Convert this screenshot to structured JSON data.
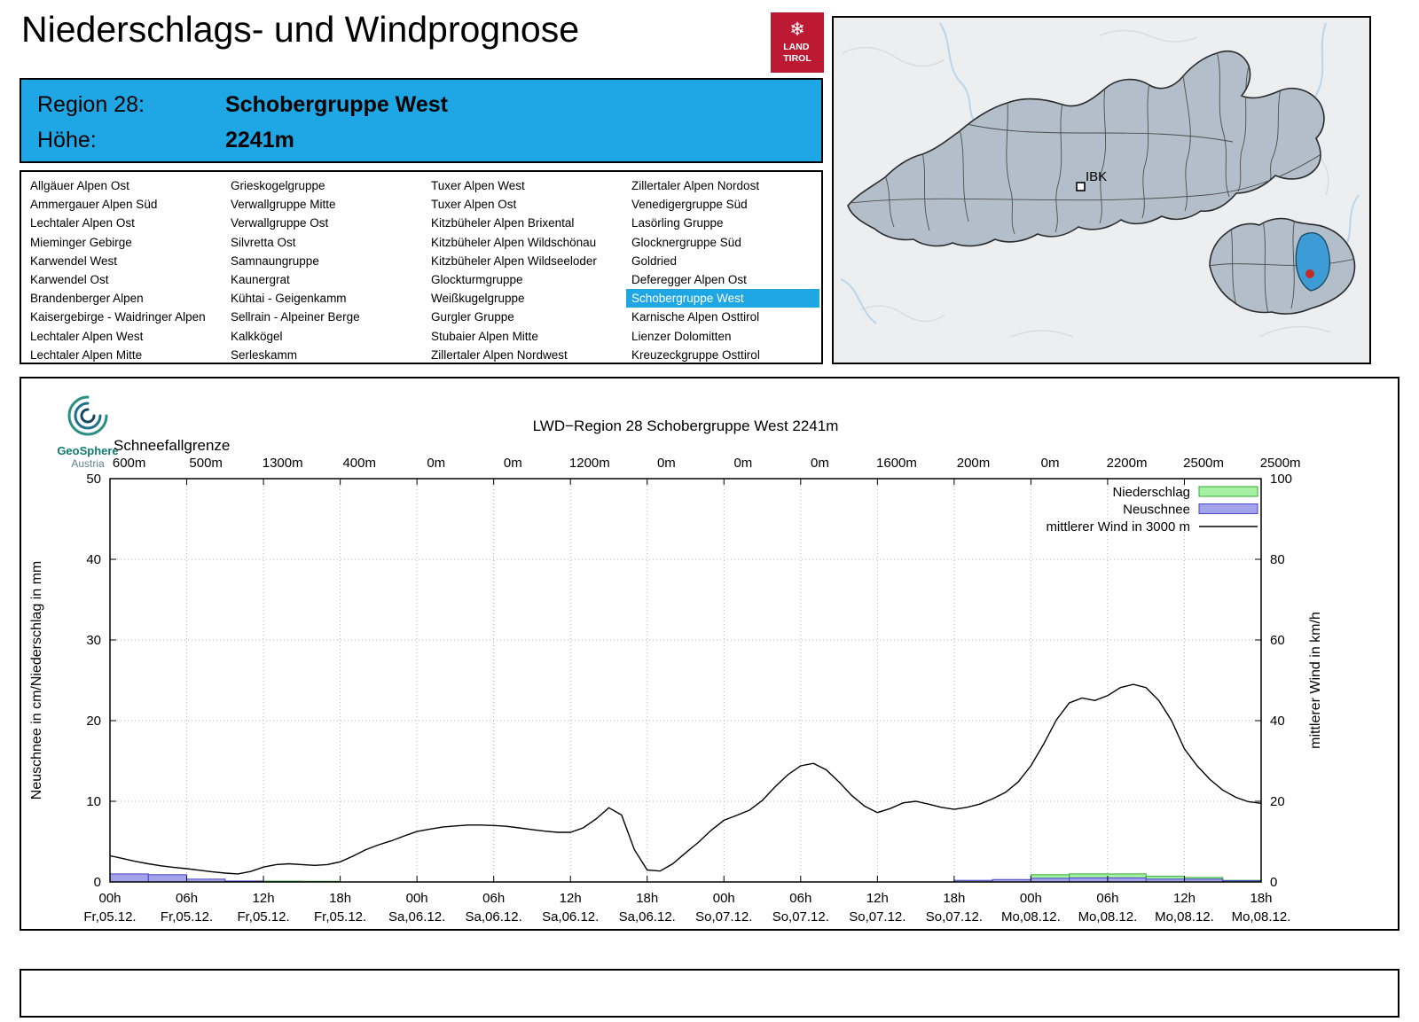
{
  "page": {
    "title": "Niederschlags- und Windprognose"
  },
  "logo": {
    "line1": "LAND",
    "line2": "TIROL",
    "color": "#bc1a33"
  },
  "region_header": {
    "region_label": "Region 28:",
    "region_name": "Schobergruppe West",
    "altitude_label": "Höhe:",
    "altitude_value": "2241m",
    "background": "#1fa6e4"
  },
  "region_list": {
    "selected_region": "Schobergruppe West",
    "columns": [
      [
        "Allgäuer Alpen Ost",
        "Ammergauer Alpen Süd",
        "Lechtaler Alpen Ost",
        "Mieminger Gebirge",
        "Karwendel West",
        "Karwendel Ost",
        "Brandenberger Alpen",
        "Kaisergebirge - Waidringer Alpen",
        "Lechtaler Alpen West",
        "Lechtaler Alpen Mitte"
      ],
      [
        "Grieskogelgruppe",
        "Verwallgruppe Mitte",
        "Verwallgruppe Ost",
        "Silvretta Ost",
        "Samnaungruppe",
        "Kaunergrat",
        "Kühtai - Geigenkamm",
        "Sellrain - Alpeiner Berge",
        "Kalkkögel",
        "Serleskamm"
      ],
      [
        "Tuxer Alpen West",
        "Tuxer Alpen Ost",
        "Kitzbüheler Alpen Brixental",
        "Kitzbüheler Alpen Wildschönau",
        "Kitzbüheler Alpen Wildseeloder",
        "Glockturmgruppe",
        "Weißkugelgruppe",
        "Gurgler Gruppe",
        "Stubaier Alpen Mitte",
        "Zillertaler Alpen Nordwest"
      ],
      [
        "Zillertaler Alpen Nordost",
        "Venedigergruppe Süd",
        "Lasörling Gruppe",
        "Glocknergruppe Süd",
        "Goldried",
        "Deferegger Alpen Ost",
        "Schobergruppe West",
        "Karnische Alpen Osttirol",
        "Lienzer Dolomitten",
        "Kreuzeckgruppe Osttirol"
      ]
    ]
  },
  "map": {
    "city_label": "IBK",
    "region_fill": "#b2bec9",
    "highlight_fill": "#3d9bd5",
    "dot_color": "#c22b2b"
  },
  "geosphere": {
    "name": "GeoSphere",
    "sub": "Austria"
  },
  "chart_data": {
    "type": "line+bar",
    "title": "LWD−Region 28 Schobergruppe West 2241m",
    "snowline_label": "Schneefallgrenze",
    "snowline_values": [
      "600m",
      "500m",
      "1300m",
      "400m",
      "0m",
      "0m",
      "1200m",
      "0m",
      "0m",
      "0m",
      "1600m",
      "200m",
      "0m",
      "2200m",
      "2500m",
      "2500m"
    ],
    "ylabel_left": "Neuschnee in cm/Niederschlag in mm",
    "ylabel_right": "mittlerer Wind in km/h",
    "ylim_left": [
      0,
      50
    ],
    "ylim_right": [
      0,
      100
    ],
    "left_ticks": [
      0,
      10,
      20,
      30,
      40,
      50
    ],
    "right_ticks": [
      0,
      20,
      40,
      60,
      80,
      100
    ],
    "x_span_hours": 90,
    "x_ticks": [
      {
        "time": "00h",
        "date": "Fr,05.12."
      },
      {
        "time": "06h",
        "date": "Fr,05.12."
      },
      {
        "time": "12h",
        "date": "Fr,05.12."
      },
      {
        "time": "18h",
        "date": "Fr,05.12."
      },
      {
        "time": "00h",
        "date": "Sa,06.12."
      },
      {
        "time": "06h",
        "date": "Sa,06.12."
      },
      {
        "time": "12h",
        "date": "Sa,06.12."
      },
      {
        "time": "18h",
        "date": "Sa,06.12."
      },
      {
        "time": "00h",
        "date": "So,07.12."
      },
      {
        "time": "06h",
        "date": "So,07.12."
      },
      {
        "time": "12h",
        "date": "So,07.12."
      },
      {
        "time": "18h",
        "date": "So,07.12."
      },
      {
        "time": "00h",
        "date": "Mo,08.12."
      },
      {
        "time": "06h",
        "date": "Mo,08.12."
      },
      {
        "time": "12h",
        "date": "Mo,08.12."
      },
      {
        "time": "18h",
        "date": "Mo,08.12."
      }
    ],
    "legend": [
      {
        "label": "Niederschlag",
        "key": "box",
        "fill": "#a5f0a5",
        "stroke": "#2fae2f"
      },
      {
        "label": "Neuschnee",
        "key": "box",
        "fill": "#a3a3ec",
        "stroke": "#4848c8"
      },
      {
        "label": "mittlerer Wind in 3000 m",
        "key": "line",
        "stroke": "#000000"
      }
    ],
    "colors": {
      "niederschlag_fill": "#a5f0a5",
      "niederschlag_stroke": "#2fae2f",
      "neuschnee_fill": "#a3a3ec",
      "neuschnee_stroke": "#4848c8",
      "wind": "#000000"
    },
    "niederschlag_bars": [
      {
        "start": 12,
        "end": 15,
        "value": 0.1
      },
      {
        "start": 15,
        "end": 18,
        "value": 0.08
      },
      {
        "start": 72,
        "end": 75,
        "value": 0.9
      },
      {
        "start": 75,
        "end": 81,
        "value": 1.0
      },
      {
        "start": 81,
        "end": 84,
        "value": 0.7
      },
      {
        "start": 84,
        "end": 87,
        "value": 0.55
      },
      {
        "start": 87,
        "end": 90,
        "value": 0.2
      }
    ],
    "neuschnee_bars": [
      {
        "start": 0,
        "end": 3,
        "value": 1.0
      },
      {
        "start": 3,
        "end": 6,
        "value": 0.9
      },
      {
        "start": 6,
        "end": 9,
        "value": 0.35
      },
      {
        "start": 9,
        "end": 12,
        "value": 0.12
      },
      {
        "start": 66,
        "end": 69,
        "value": 0.2
      },
      {
        "start": 69,
        "end": 72,
        "value": 0.3
      },
      {
        "start": 72,
        "end": 75,
        "value": 0.45
      },
      {
        "start": 75,
        "end": 81,
        "value": 0.5
      },
      {
        "start": 81,
        "end": 87,
        "value": 0.35
      },
      {
        "start": 87,
        "end": 90,
        "value": 0.15
      }
    ],
    "wind_points": [
      [
        0,
        6.5
      ],
      [
        1,
        5.8
      ],
      [
        2,
        5.1
      ],
      [
        3,
        4.5
      ],
      [
        4,
        4.0
      ],
      [
        5,
        3.6
      ],
      [
        6,
        3.3
      ],
      [
        7,
        2.9
      ],
      [
        8,
        2.5
      ],
      [
        9,
        2.2
      ],
      [
        10,
        2.0
      ],
      [
        11,
        2.6
      ],
      [
        12,
        3.7
      ],
      [
        13,
        4.3
      ],
      [
        14,
        4.5
      ],
      [
        15,
        4.3
      ],
      [
        16,
        4.1
      ],
      [
        17,
        4.3
      ],
      [
        18,
        5.0
      ],
      [
        19,
        6.4
      ],
      [
        20,
        8.0
      ],
      [
        21,
        9.2
      ],
      [
        22,
        10.2
      ],
      [
        23,
        11.4
      ],
      [
        24,
        12.5
      ],
      [
        25,
        13.1
      ],
      [
        26,
        13.6
      ],
      [
        27,
        13.9
      ],
      [
        28,
        14.1
      ],
      [
        29,
        14.1
      ],
      [
        30,
        14.0
      ],
      [
        31,
        13.8
      ],
      [
        32,
        13.4
      ],
      [
        33,
        13.0
      ],
      [
        34,
        12.6
      ],
      [
        35,
        12.3
      ],
      [
        36,
        12.3
      ],
      [
        37,
        13.4
      ],
      [
        38,
        15.6
      ],
      [
        39,
        18.4
      ],
      [
        40,
        16.6
      ],
      [
        41,
        8.0
      ],
      [
        42,
        3.0
      ],
      [
        43,
        2.7
      ],
      [
        44,
        4.5
      ],
      [
        45,
        7.2
      ],
      [
        46,
        9.8
      ],
      [
        47,
        12.8
      ],
      [
        48,
        15.3
      ],
      [
        49,
        16.5
      ],
      [
        50,
        17.8
      ],
      [
        51,
        20.2
      ],
      [
        52,
        23.6
      ],
      [
        53,
        26.6
      ],
      [
        54,
        28.8
      ],
      [
        55,
        29.4
      ],
      [
        56,
        27.8
      ],
      [
        57,
        24.8
      ],
      [
        58,
        21.4
      ],
      [
        59,
        18.8
      ],
      [
        60,
        17.2
      ],
      [
        61,
        18.2
      ],
      [
        62,
        19.6
      ],
      [
        63,
        20.0
      ],
      [
        64,
        19.3
      ],
      [
        65,
        18.5
      ],
      [
        66,
        18.0
      ],
      [
        67,
        18.5
      ],
      [
        68,
        19.3
      ],
      [
        69,
        20.6
      ],
      [
        70,
        22.2
      ],
      [
        71,
        24.8
      ],
      [
        72,
        28.8
      ],
      [
        73,
        34.2
      ],
      [
        74,
        40.2
      ],
      [
        75,
        44.4
      ],
      [
        76,
        45.6
      ],
      [
        77,
        45.0
      ],
      [
        78,
        46.2
      ],
      [
        79,
        48.2
      ],
      [
        80,
        49.0
      ],
      [
        81,
        48.2
      ],
      [
        82,
        45.0
      ],
      [
        83,
        40.0
      ],
      [
        84,
        33.0
      ],
      [
        85,
        28.8
      ],
      [
        86,
        25.4
      ],
      [
        87,
        22.8
      ],
      [
        88,
        21.0
      ],
      [
        89,
        19.9
      ],
      [
        90,
        19.5
      ]
    ]
  }
}
